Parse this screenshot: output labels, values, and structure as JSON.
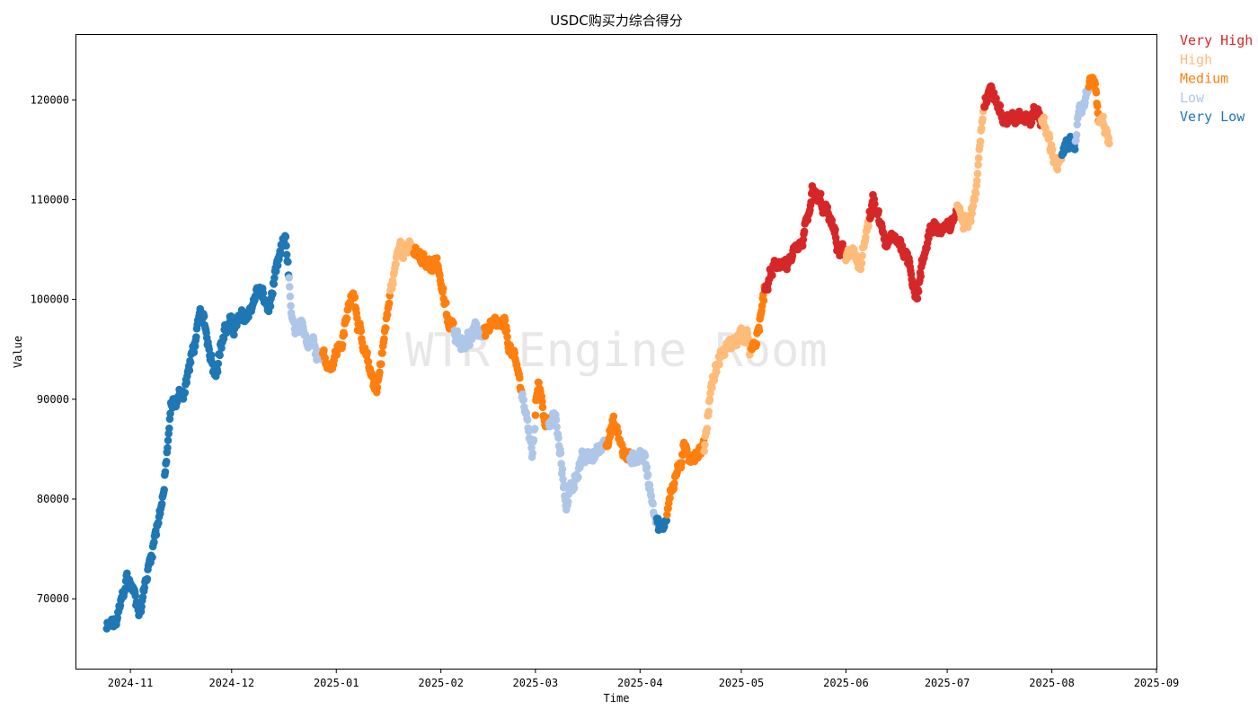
{
  "chart_data": {
    "type": "scatter",
    "title": "USDC购买力综合得分",
    "xlabel": "Time",
    "ylabel": "Value",
    "watermark": "WTR Engine Room",
    "x_start": "2024-10-25",
    "x_end": "2025-08-18",
    "xlim": [
      "2024-10-16",
      "2025-09-01"
    ],
    "ylim": [
      63000,
      126500
    ],
    "x_ticks": [
      "2024-11",
      "2024-12",
      "2025-01",
      "2025-02",
      "2025-03",
      "2025-04",
      "2025-05",
      "2025-06",
      "2025-07",
      "2025-08",
      "2025-09"
    ],
    "y_ticks": [
      70000,
      80000,
      90000,
      100000,
      110000,
      120000
    ],
    "legend": [
      {
        "label": "Very High",
        "color": "#d62728"
      },
      {
        "label": "High",
        "color": "#ffbb78"
      },
      {
        "label": "Medium",
        "color": "#ff7f0e"
      },
      {
        "label": "Low",
        "color": "#aec7e8"
      },
      {
        "label": "Very Low",
        "color": "#1f77b4"
      }
    ],
    "legend_position": "outside-top-right",
    "grid": false,
    "trend": [
      {
        "x": "2024-10-25",
        "y": 67000
      },
      {
        "x": "2024-10-28",
        "y": 67500
      },
      {
        "x": "2024-10-31",
        "y": 72200
      },
      {
        "x": "2024-11-04",
        "y": 69000
      },
      {
        "x": "2024-11-06",
        "y": 72500
      },
      {
        "x": "2024-11-08",
        "y": 76000
      },
      {
        "x": "2024-11-11",
        "y": 81000
      },
      {
        "x": "2024-11-13",
        "y": 89000
      },
      {
        "x": "2024-11-17",
        "y": 91000
      },
      {
        "x": "2024-11-22",
        "y": 98500
      },
      {
        "x": "2024-11-26",
        "y": 93000
      },
      {
        "x": "2024-11-29",
        "y": 97000
      },
      {
        "x": "2024-12-05",
        "y": 98000
      },
      {
        "x": "2024-12-09",
        "y": 101000
      },
      {
        "x": "2024-12-12",
        "y": 99000
      },
      {
        "x": "2024-12-17",
        "y": 106500
      },
      {
        "x": "2024-12-19",
        "y": 97000
      },
      {
        "x": "2024-12-25",
        "y": 96000
      },
      {
        "x": "2024-12-30",
        "y": 93500
      },
      {
        "x": "2025-01-03",
        "y": 96000
      },
      {
        "x": "2025-01-06",
        "y": 101500
      },
      {
        "x": "2025-01-09",
        "y": 94500
      },
      {
        "x": "2025-01-13",
        "y": 91000
      },
      {
        "x": "2025-01-17",
        "y": 100500
      },
      {
        "x": "2025-01-20",
        "y": 106000
      },
      {
        "x": "2025-01-27",
        "y": 103500
      },
      {
        "x": "2025-01-31",
        "y": 104000
      },
      {
        "x": "2025-02-03",
        "y": 97500
      },
      {
        "x": "2025-02-08",
        "y": 96000
      },
      {
        "x": "2025-02-14",
        "y": 97000
      },
      {
        "x": "2025-02-20",
        "y": 97000
      },
      {
        "x": "2025-02-25",
        "y": 91000
      },
      {
        "x": "2025-02-28",
        "y": 84500
      },
      {
        "x": "2025-03-02",
        "y": 92500
      },
      {
        "x": "2025-03-04",
        "y": 87500
      },
      {
        "x": "2025-03-07",
        "y": 88000
      },
      {
        "x": "2025-03-10",
        "y": 79500
      },
      {
        "x": "2025-03-14",
        "y": 83500
      },
      {
        "x": "2025-03-19",
        "y": 84500
      },
      {
        "x": "2025-03-24",
        "y": 87500
      },
      {
        "x": "2025-03-28",
        "y": 84000
      },
      {
        "x": "2025-04-02",
        "y": 84500
      },
      {
        "x": "2025-04-06",
        "y": 78000
      },
      {
        "x": "2025-04-08",
        "y": 76500
      },
      {
        "x": "2025-04-10",
        "y": 81000
      },
      {
        "x": "2025-04-14",
        "y": 84500
      },
      {
        "x": "2025-04-20",
        "y": 85000
      },
      {
        "x": "2025-04-22",
        "y": 91500
      },
      {
        "x": "2025-04-25",
        "y": 94500
      },
      {
        "x": "2025-05-01",
        "y": 96500
      },
      {
        "x": "2025-05-05",
        "y": 94500
      },
      {
        "x": "2025-05-08",
        "y": 101000
      },
      {
        "x": "2025-05-12",
        "y": 104000
      },
      {
        "x": "2025-05-16",
        "y": 103500
      },
      {
        "x": "2025-05-19",
        "y": 105000
      },
      {
        "x": "2025-05-22",
        "y": 110500
      },
      {
        "x": "2025-05-26",
        "y": 109000
      },
      {
        "x": "2025-05-30",
        "y": 105000
      },
      {
        "x": "2025-06-05",
        "y": 103500
      },
      {
        "x": "2025-06-09",
        "y": 109500
      },
      {
        "x": "2025-06-13",
        "y": 105500
      },
      {
        "x": "2025-06-17",
        "y": 106000
      },
      {
        "x": "2025-06-20",
        "y": 103500
      },
      {
        "x": "2025-06-22",
        "y": 100500
      },
      {
        "x": "2025-06-26",
        "y": 107500
      },
      {
        "x": "2025-07-01",
        "y": 106500
      },
      {
        "x": "2025-07-04",
        "y": 109000
      },
      {
        "x": "2025-07-08",
        "y": 108500
      },
      {
        "x": "2025-07-10",
        "y": 112000
      },
      {
        "x": "2025-07-11",
        "y": 117500
      },
      {
        "x": "2025-07-14",
        "y": 121500
      },
      {
        "x": "2025-07-18",
        "y": 118500
      },
      {
        "x": "2025-07-24",
        "y": 118000
      },
      {
        "x": "2025-07-28",
        "y": 119000
      },
      {
        "x": "2025-08-01",
        "y": 115000
      },
      {
        "x": "2025-08-03",
        "y": 113500
      },
      {
        "x": "2025-08-08",
        "y": 116500
      },
      {
        "x": "2025-08-10",
        "y": 119000
      },
      {
        "x": "2025-08-13",
        "y": 123000
      },
      {
        "x": "2025-08-15",
        "y": 118000
      },
      {
        "x": "2025-08-18",
        "y": 116000
      }
    ],
    "category_segments": [
      {
        "from": "2024-10-25",
        "to": "2024-12-18",
        "category": "Very Low"
      },
      {
        "from": "2024-12-18",
        "to": "2024-12-28",
        "category": "Low"
      },
      {
        "from": "2024-12-28",
        "to": "2025-01-17",
        "category": "Medium"
      },
      {
        "from": "2025-01-17",
        "to": "2025-01-24",
        "category": "High"
      },
      {
        "from": "2025-01-24",
        "to": "2025-02-05",
        "category": "Medium"
      },
      {
        "from": "2025-02-05",
        "to": "2025-02-14",
        "category": "Low"
      },
      {
        "from": "2025-02-14",
        "to": "2025-02-25",
        "category": "Medium"
      },
      {
        "from": "2025-02-25",
        "to": "2025-03-01",
        "category": "Low"
      },
      {
        "from": "2025-03-01",
        "to": "2025-03-05",
        "category": "Medium"
      },
      {
        "from": "2025-03-05",
        "to": "2025-03-22",
        "category": "Low"
      },
      {
        "from": "2025-03-22",
        "to": "2025-03-29",
        "category": "Medium"
      },
      {
        "from": "2025-03-29",
        "to": "2025-04-06",
        "category": "Low"
      },
      {
        "from": "2025-04-06",
        "to": "2025-04-09",
        "category": "Very Low"
      },
      {
        "from": "2025-04-09",
        "to": "2025-04-20",
        "category": "Medium"
      },
      {
        "from": "2025-04-20",
        "to": "2025-05-04",
        "category": "High"
      },
      {
        "from": "2025-05-04",
        "to": "2025-05-08",
        "category": "Medium"
      },
      {
        "from": "2025-05-08",
        "to": "2025-06-01",
        "category": "Very High"
      },
      {
        "from": "2025-06-01",
        "to": "2025-06-08",
        "category": "High"
      },
      {
        "from": "2025-06-08",
        "to": "2025-07-04",
        "category": "Very High"
      },
      {
        "from": "2025-07-04",
        "to": "2025-07-12",
        "category": "High"
      },
      {
        "from": "2025-07-12",
        "to": "2025-07-29",
        "category": "Very High"
      },
      {
        "from": "2025-07-29",
        "to": "2025-08-04",
        "category": "High"
      },
      {
        "from": "2025-08-04",
        "to": "2025-08-08",
        "category": "Very Low"
      },
      {
        "from": "2025-08-08",
        "to": "2025-08-12",
        "category": "Low"
      },
      {
        "from": "2025-08-12",
        "to": "2025-08-15",
        "category": "Medium"
      },
      {
        "from": "2025-08-15",
        "to": "2025-08-19",
        "category": "High"
      }
    ]
  }
}
